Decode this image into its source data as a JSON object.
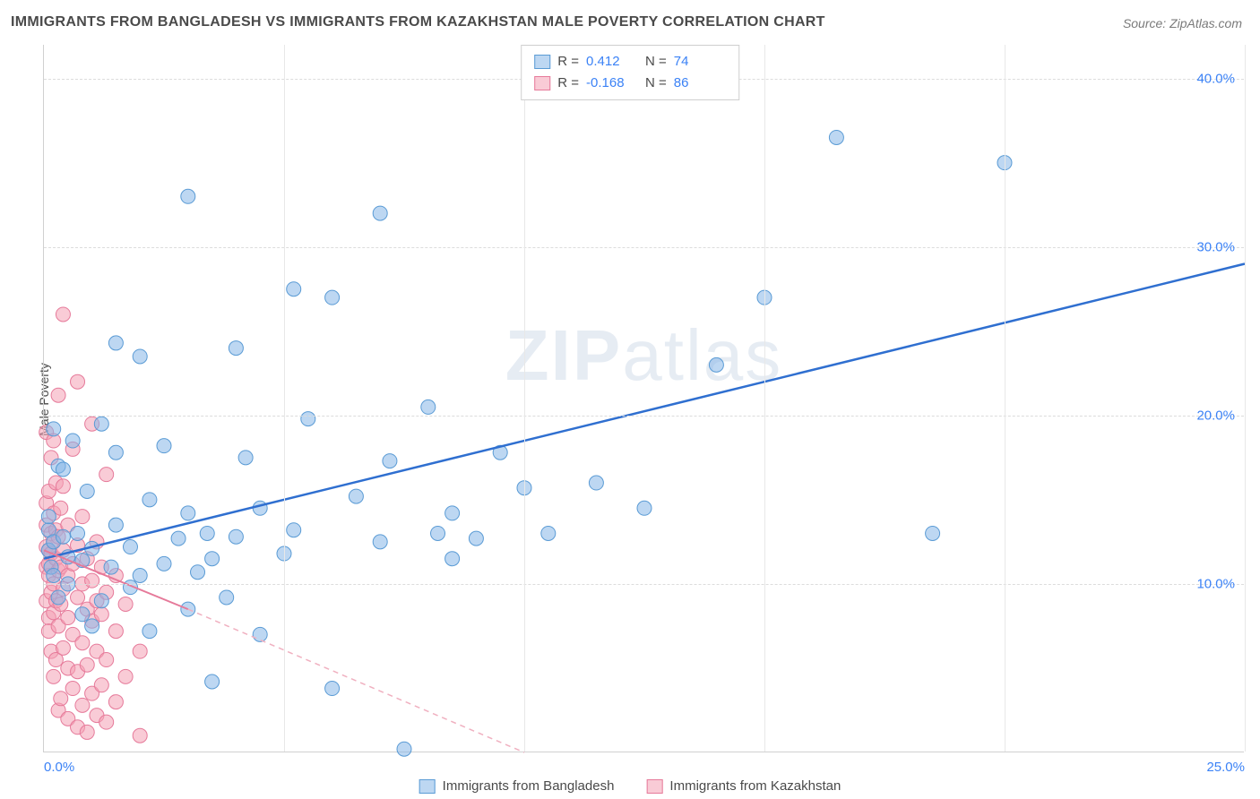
{
  "title": "IMMIGRANTS FROM BANGLADESH VS IMMIGRANTS FROM KAZAKHSTAN MALE POVERTY CORRELATION CHART",
  "source": "Source: ZipAtlas.com",
  "y_axis_label": "Male Poverty",
  "watermark": {
    "bold": "ZIP",
    "rest": "atlas"
  },
  "chart": {
    "type": "scatter",
    "xlim": [
      0,
      25
    ],
    "ylim": [
      0,
      42
    ],
    "x_ticks": [
      0,
      5,
      10,
      15,
      20,
      25
    ],
    "x_tick_labels": [
      "0.0%",
      "",
      "",
      "",
      "",
      "25.0%"
    ],
    "y_ticks": [
      10,
      20,
      30,
      40
    ],
    "y_tick_labels": [
      "10.0%",
      "20.0%",
      "30.0%",
      "40.0%"
    ],
    "background_color": "#ffffff",
    "grid_color_h": "#dcdcdc",
    "grid_color_v": "#e8e8e8",
    "tick_label_color": "#3b82f6",
    "tick_fontsize": 15,
    "marker_radius": 8,
    "series": {
      "bangladesh": {
        "label": "Immigrants from Bangladesh",
        "fill_color": "rgba(135,183,232,0.55)",
        "stroke_color": "#5a9bd5",
        "R": "0.412",
        "N": "74",
        "trend": {
          "x1": 0,
          "y1": 11.5,
          "x2": 25,
          "y2": 29,
          "color": "#2f6fd0",
          "width": 2.5
        },
        "points": [
          [
            0.1,
            12.0
          ],
          [
            0.1,
            13.2
          ],
          [
            0.1,
            14.0
          ],
          [
            0.15,
            11.0
          ],
          [
            0.2,
            12.5
          ],
          [
            0.2,
            10.5
          ],
          [
            0.2,
            19.2
          ],
          [
            0.3,
            17.0
          ],
          [
            0.3,
            9.2
          ],
          [
            0.4,
            12.8
          ],
          [
            0.4,
            16.8
          ],
          [
            0.5,
            10.0
          ],
          [
            0.5,
            11.6
          ],
          [
            0.6,
            18.5
          ],
          [
            0.7,
            13.0
          ],
          [
            0.8,
            11.4
          ],
          [
            0.8,
            8.2
          ],
          [
            0.9,
            15.5
          ],
          [
            1.0,
            12.1
          ],
          [
            1.0,
            7.5
          ],
          [
            1.2,
            19.5
          ],
          [
            1.2,
            9.0
          ],
          [
            1.4,
            11.0
          ],
          [
            1.5,
            17.8
          ],
          [
            1.5,
            24.3
          ],
          [
            1.5,
            13.5
          ],
          [
            1.8,
            9.8
          ],
          [
            1.8,
            12.2
          ],
          [
            2.0,
            23.5
          ],
          [
            2.0,
            10.5
          ],
          [
            2.2,
            15.0
          ],
          [
            2.2,
            7.2
          ],
          [
            2.5,
            11.2
          ],
          [
            2.5,
            18.2
          ],
          [
            2.8,
            12.7
          ],
          [
            3.0,
            8.5
          ],
          [
            3.0,
            14.2
          ],
          [
            3.0,
            33.0
          ],
          [
            3.2,
            10.7
          ],
          [
            3.4,
            13.0
          ],
          [
            3.5,
            4.2
          ],
          [
            3.5,
            11.5
          ],
          [
            3.8,
            9.2
          ],
          [
            4.0,
            24.0
          ],
          [
            4.0,
            12.8
          ],
          [
            4.2,
            17.5
          ],
          [
            4.5,
            14.5
          ],
          [
            4.5,
            7.0
          ],
          [
            5.0,
            11.8
          ],
          [
            5.2,
            27.5
          ],
          [
            5.2,
            13.2
          ],
          [
            5.5,
            19.8
          ],
          [
            6.0,
            27.0
          ],
          [
            6.0,
            3.8
          ],
          [
            6.5,
            15.2
          ],
          [
            7.0,
            12.5
          ],
          [
            7.0,
            32.0
          ],
          [
            7.2,
            17.3
          ],
          [
            7.5,
            0.2
          ],
          [
            8.0,
            20.5
          ],
          [
            8.2,
            13.0
          ],
          [
            8.5,
            11.5
          ],
          [
            8.5,
            14.2
          ],
          [
            9.0,
            12.7
          ],
          [
            9.5,
            17.8
          ],
          [
            10.0,
            15.7
          ],
          [
            10.5,
            13.0
          ],
          [
            11.5,
            16.0
          ],
          [
            12.5,
            14.5
          ],
          [
            14.0,
            23.0
          ],
          [
            15.0,
            27.0
          ],
          [
            16.5,
            36.5
          ],
          [
            18.5,
            13.0
          ],
          [
            20.0,
            35.0
          ]
        ]
      },
      "kazakhstan": {
        "label": "Immigrants from Kazakhstan",
        "fill_color": "rgba(244,160,180,0.55)",
        "stroke_color": "#e67a9a",
        "R": "-0.168",
        "N": "86",
        "trend": {
          "solid": {
            "x1": 0,
            "y1": 12.0,
            "x2": 3.0,
            "y2": 8.5
          },
          "dashed": {
            "x1": 3.0,
            "y1": 8.5,
            "x2": 10.0,
            "y2": 0
          },
          "color_solid": "#e67a9a",
          "color_dash": "#f0b0c0",
          "width": 2
        },
        "points": [
          [
            0.05,
            11.0
          ],
          [
            0.05,
            12.2
          ],
          [
            0.05,
            13.5
          ],
          [
            0.05,
            9.0
          ],
          [
            0.05,
            14.8
          ],
          [
            0.05,
            19.0
          ],
          [
            0.1,
            10.5
          ],
          [
            0.1,
            8.0
          ],
          [
            0.1,
            12.0
          ],
          [
            0.1,
            15.5
          ],
          [
            0.1,
            11.2
          ],
          [
            0.1,
            7.2
          ],
          [
            0.15,
            6.0
          ],
          [
            0.15,
            13.0
          ],
          [
            0.15,
            9.5
          ],
          [
            0.15,
            17.5
          ],
          [
            0.15,
            11.8
          ],
          [
            0.2,
            4.5
          ],
          [
            0.2,
            10.0
          ],
          [
            0.2,
            12.5
          ],
          [
            0.2,
            8.3
          ],
          [
            0.2,
            14.2
          ],
          [
            0.2,
            18.5
          ],
          [
            0.25,
            5.5
          ],
          [
            0.25,
            11.5
          ],
          [
            0.25,
            9.0
          ],
          [
            0.25,
            16.0
          ],
          [
            0.25,
            13.2
          ],
          [
            0.3,
            2.5
          ],
          [
            0.3,
            7.5
          ],
          [
            0.3,
            10.8
          ],
          [
            0.3,
            12.8
          ],
          [
            0.3,
            21.2
          ],
          [
            0.35,
            3.2
          ],
          [
            0.35,
            8.8
          ],
          [
            0.35,
            11.0
          ],
          [
            0.35,
            14.5
          ],
          [
            0.4,
            26.0
          ],
          [
            0.4,
            6.2
          ],
          [
            0.4,
            9.7
          ],
          [
            0.4,
            12.0
          ],
          [
            0.4,
            15.8
          ],
          [
            0.5,
            2.0
          ],
          [
            0.5,
            5.0
          ],
          [
            0.5,
            8.0
          ],
          [
            0.5,
            10.5
          ],
          [
            0.5,
            13.5
          ],
          [
            0.6,
            3.8
          ],
          [
            0.6,
            7.0
          ],
          [
            0.6,
            11.2
          ],
          [
            0.6,
            18.0
          ],
          [
            0.7,
            1.5
          ],
          [
            0.7,
            4.8
          ],
          [
            0.7,
            9.2
          ],
          [
            0.7,
            12.3
          ],
          [
            0.7,
            22.0
          ],
          [
            0.8,
            2.8
          ],
          [
            0.8,
            6.5
          ],
          [
            0.8,
            10.0
          ],
          [
            0.8,
            14.0
          ],
          [
            0.9,
            1.2
          ],
          [
            0.9,
            5.2
          ],
          [
            0.9,
            8.5
          ],
          [
            0.9,
            11.5
          ],
          [
            1.0,
            3.5
          ],
          [
            1.0,
            7.8
          ],
          [
            1.0,
            19.5
          ],
          [
            1.0,
            10.2
          ],
          [
            1.1,
            2.2
          ],
          [
            1.1,
            6.0
          ],
          [
            1.1,
            9.0
          ],
          [
            1.1,
            12.5
          ],
          [
            1.2,
            4.0
          ],
          [
            1.2,
            8.2
          ],
          [
            1.2,
            11.0
          ],
          [
            1.3,
            1.8
          ],
          [
            1.3,
            5.5
          ],
          [
            1.3,
            9.5
          ],
          [
            1.3,
            16.5
          ],
          [
            1.5,
            3.0
          ],
          [
            1.5,
            7.2
          ],
          [
            1.5,
            10.5
          ],
          [
            1.7,
            4.5
          ],
          [
            1.7,
            8.8
          ],
          [
            2.0,
            1.0
          ],
          [
            2.0,
            6.0
          ]
        ]
      }
    }
  },
  "legend_top": {
    "R_label": "R =",
    "N_label": "N ="
  }
}
